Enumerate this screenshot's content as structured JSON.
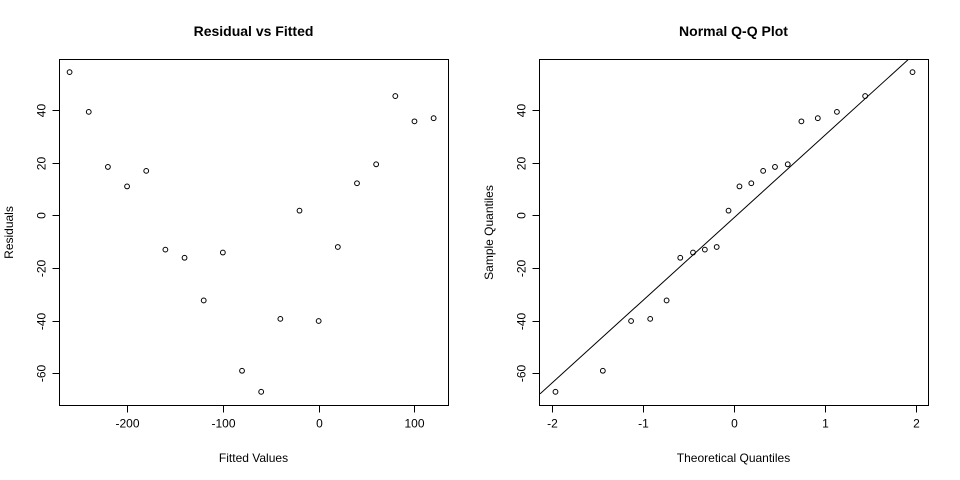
{
  "chart_data": [
    {
      "type": "scatter",
      "title": "Residual vs Fitted",
      "xlabel": "Fitted Values",
      "ylabel": "Residuals",
      "xlim": [
        -270,
        135
      ],
      "ylim": [
        -72,
        59
      ],
      "xticks": [
        -200,
        -100,
        0,
        100
      ],
      "xtick_labels": [
        "-200",
        "-100",
        "0",
        "100"
      ],
      "yticks": [
        -60,
        -40,
        -20,
        0,
        20,
        40
      ],
      "ytick_labels": [
        "-60",
        "-40",
        "-20",
        "0",
        "20",
        "40"
      ],
      "grid": false,
      "series": [
        {
          "x": [
            -260,
            -240,
            -220,
            -200,
            -180,
            -160,
            -140,
            -120,
            -100,
            -80,
            -60,
            -40,
            -20,
            0,
            20,
            40,
            60,
            80,
            100,
            120
          ],
          "y": [
            54.4,
            39.3,
            18.4,
            11.0,
            16.9,
            -13.0,
            -16.1,
            -32.3,
            -14.1,
            -59.0,
            -67.0,
            -39.3,
            1.8,
            -40.1,
            -12.0,
            12.2,
            19.4,
            45.3,
            35.7,
            36.9
          ]
        }
      ]
    },
    {
      "type": "scatter",
      "title": "Normal Q-Q Plot",
      "xlabel": "Theoretical Quantiles",
      "ylabel": "Sample Quantiles",
      "xlim": [
        -2.13,
        2.13
      ],
      "ylim": [
        -72,
        59
      ],
      "xticks": [
        -2,
        -1,
        0,
        1,
        2
      ],
      "xtick_labels": [
        "-2",
        "-1",
        "0",
        "1",
        "2"
      ],
      "yticks": [
        -60,
        -40,
        -20,
        0,
        20,
        40
      ],
      "ytick_labels": [
        "-60",
        "-40",
        "-20",
        "0",
        "20",
        "40"
      ],
      "grid": false,
      "reference_line": {
        "slope": 31.4,
        "intercept": -0.9
      },
      "series": [
        {
          "x": [
            -1.96,
            -1.44,
            -1.13,
            -0.92,
            -0.74,
            -0.59,
            -0.45,
            -0.32,
            -0.19,
            -0.06,
            0.06,
            0.19,
            0.32,
            0.45,
            0.59,
            0.74,
            0.92,
            1.13,
            1.44,
            1.96
          ],
          "y": [
            -67.0,
            -59.0,
            -40.1,
            -39.3,
            -32.3,
            -16.1,
            -14.1,
            -13.0,
            -12.0,
            1.8,
            11.0,
            12.2,
            16.9,
            18.4,
            19.4,
            35.7,
            36.9,
            39.3,
            45.3,
            54.4
          ]
        }
      ]
    }
  ]
}
